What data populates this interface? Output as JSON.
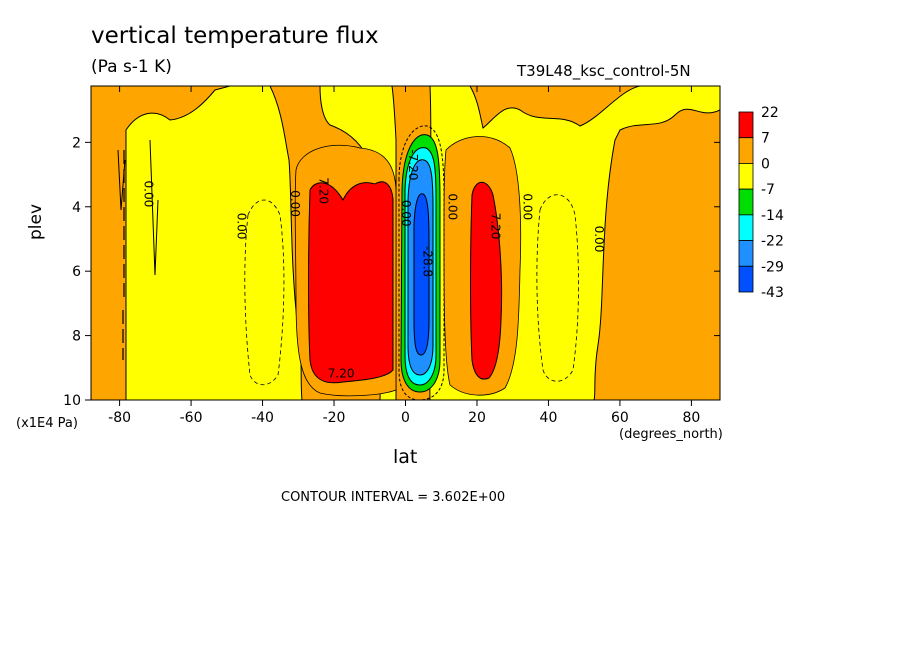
{
  "chart_data": {
    "type": "heatmap",
    "title": "vertical temperature flux",
    "subtitle": "(Pa s-1 K)",
    "dataset": "T39L48_ksc_control-5N",
    "xlabel": "lat",
    "xunits": "(degrees_north)",
    "ylabel": "plev",
    "yunits": "(x1E4 Pa)",
    "xlim": [
      -88,
      88
    ],
    "ylim": [
      10,
      0.25
    ],
    "x_ticks": [
      -80,
      -60,
      -40,
      -20,
      0,
      20,
      40,
      60,
      80
    ],
    "x_tick_labels": [
      "-80",
      "-60",
      "-40",
      "-20",
      "0",
      "20",
      "40",
      "60",
      "80"
    ],
    "y_ticks": [
      2,
      4,
      6,
      8,
      10
    ],
    "y_tick_labels": [
      "2",
      "4",
      "6",
      "8",
      "10"
    ],
    "contour_interval": "CONTOUR INTERVAL = 3.602E+00",
    "colorbar": {
      "labels": [
        "22",
        "7",
        "0",
        "-7",
        "-14",
        "-22",
        "-29",
        "-43"
      ],
      "colors": [
        "#ff0000",
        "#ffa500",
        "#ffff00",
        "#00dd00",
        "#00ffff",
        "#1e90ff",
        "#0050ff"
      ]
    },
    "contour_labels": [
      {
        "text": "0.00",
        "lat": -73,
        "plev": 3.6
      },
      {
        "text": "0.00",
        "lat": -47,
        "plev": 4.6
      },
      {
        "text": "0.00",
        "lat": -32,
        "plev": 3.9
      },
      {
        "text": "7.20",
        "lat": -24,
        "plev": 3.5
      },
      {
        "text": "0.00",
        "lat": -1,
        "plev": 4.2
      },
      {
        "text": "-7.20",
        "lat": 1,
        "plev": 2.7
      },
      {
        "text": "-28.8",
        "lat": 5,
        "plev": 5.7
      },
      {
        "text": "0.00",
        "lat": 12,
        "plev": 4.0
      },
      {
        "text": "7.20",
        "lat": 24,
        "plev": 4.6
      },
      {
        "text": "0.00",
        "lat": 33,
        "plev": 4.0
      },
      {
        "text": "0.00",
        "lat": 53,
        "plev": 5.0
      },
      {
        "text": "7.20",
        "lat": -18,
        "plev": 9.3
      }
    ]
  }
}
